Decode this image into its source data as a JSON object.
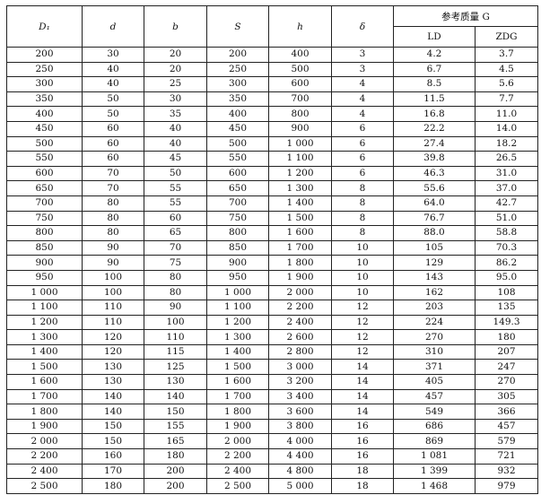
{
  "header": {
    "cols": [
      "D₁",
      "d",
      "b",
      "S",
      "h",
      "δ"
    ],
    "group": "参考质量 G",
    "sub": [
      "LD",
      "ZDG"
    ]
  },
  "rows": [
    [
      "200",
      "30",
      "20",
      "200",
      "400",
      "3",
      "4.2",
      "3.7"
    ],
    [
      "250",
      "40",
      "20",
      "250",
      "500",
      "3",
      "6.7",
      "4.5"
    ],
    [
      "300",
      "40",
      "25",
      "300",
      "600",
      "4",
      "8.5",
      "5.6"
    ],
    [
      "350",
      "50",
      "30",
      "350",
      "700",
      "4",
      "11.5",
      "7.7"
    ],
    [
      "400",
      "50",
      "35",
      "400",
      "800",
      "4",
      "16.8",
      "11.0"
    ],
    [
      "450",
      "60",
      "40",
      "450",
      "900",
      "6",
      "22.2",
      "14.0"
    ],
    [
      "500",
      "60",
      "40",
      "500",
      "1 000",
      "6",
      "27.4",
      "18.2"
    ],
    [
      "550",
      "60",
      "45",
      "550",
      "1 100",
      "6",
      "39.8",
      "26.5"
    ],
    [
      "600",
      "70",
      "50",
      "600",
      "1 200",
      "6",
      "46.3",
      "31.0"
    ],
    [
      "650",
      "70",
      "55",
      "650",
      "1 300",
      "8",
      "55.6",
      "37.0"
    ],
    [
      "700",
      "80",
      "55",
      "700",
      "1 400",
      "8",
      "64.0",
      "42.7"
    ],
    [
      "750",
      "80",
      "60",
      "750",
      "1 500",
      "8",
      "76.7",
      "51.0"
    ],
    [
      "800",
      "80",
      "65",
      "800",
      "1 600",
      "8",
      "88.0",
      "58.8"
    ],
    [
      "850",
      "90",
      "70",
      "850",
      "1 700",
      "10",
      "105",
      "70.3"
    ],
    [
      "900",
      "90",
      "75",
      "900",
      "1 800",
      "10",
      "129",
      "86.2"
    ],
    [
      "950",
      "100",
      "80",
      "950",
      "1 900",
      "10",
      "143",
      "95.0"
    ],
    [
      "1 000",
      "100",
      "80",
      "1 000",
      "2 000",
      "10",
      "162",
      "108"
    ],
    [
      "1 100",
      "110",
      "90",
      "1 100",
      "2 200",
      "12",
      "203",
      "135"
    ],
    [
      "1 200",
      "110",
      "100",
      "1 200",
      "2 400",
      "12",
      "224",
      "149.3"
    ],
    [
      "1 300",
      "120",
      "110",
      "1 300",
      "2 600",
      "12",
      "270",
      "180"
    ],
    [
      "1 400",
      "120",
      "115",
      "1 400",
      "2 800",
      "12",
      "310",
      "207"
    ],
    [
      "1 500",
      "130",
      "125",
      "1 500",
      "3 000",
      "14",
      "371",
      "247"
    ],
    [
      "1 600",
      "130",
      "130",
      "1 600",
      "3 200",
      "14",
      "405",
      "270"
    ],
    [
      "1 700",
      "140",
      "140",
      "1 700",
      "3 400",
      "14",
      "457",
      "305"
    ],
    [
      "1 800",
      "140",
      "150",
      "1 800",
      "3 600",
      "14",
      "549",
      "366"
    ],
    [
      "1 900",
      "150",
      "155",
      "1 900",
      "3 800",
      "16",
      "686",
      "457"
    ],
    [
      "2 000",
      "150",
      "165",
      "2 000",
      "4 000",
      "16",
      "869",
      "579"
    ],
    [
      "2 200",
      "160",
      "180",
      "2 200",
      "4 400",
      "16",
      "1 081",
      "721"
    ],
    [
      "2 400",
      "170",
      "200",
      "2 400",
      "4 800",
      "18",
      "1 399",
      "932"
    ],
    [
      "2 500",
      "180",
      "200",
      "2 500",
      "5 000",
      "18",
      "1 468",
      "979"
    ]
  ]
}
